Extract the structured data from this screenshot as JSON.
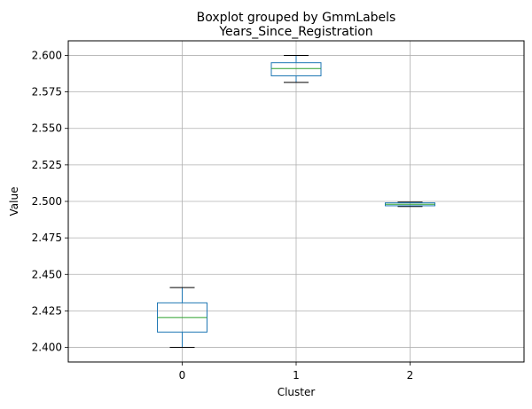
{
  "chart_data": {
    "type": "box",
    "suptitle": "Boxplot grouped by GmmLabels",
    "title": "Years_Since_Registration",
    "xlabel": "Cluster",
    "ylabel": "Value",
    "ylim": [
      2.39,
      2.61
    ],
    "yticks": [
      "2.400",
      "2.425",
      "2.450",
      "2.475",
      "2.500",
      "2.525",
      "2.550",
      "2.575",
      "2.600"
    ],
    "grid": true,
    "categories": [
      "0",
      "1",
      "2"
    ],
    "boxes": [
      {
        "category": "0",
        "whisker_low": 2.4,
        "q1": 2.4105,
        "median": 2.4205,
        "q3": 2.4305,
        "whisker_high": 2.441
      },
      {
        "category": "1",
        "whisker_low": 2.5815,
        "q1": 2.586,
        "median": 2.591,
        "q3": 2.595,
        "whisker_high": 2.6
      },
      {
        "category": "2",
        "whisker_low": 2.4965,
        "q1": 2.497,
        "median": 2.498,
        "q3": 2.499,
        "whisker_high": 2.4995
      }
    ],
    "colors": {
      "box": "#1f77b4",
      "median": "#2ca02c",
      "whisker": "#000000",
      "grid": "#b0b0b0"
    }
  }
}
